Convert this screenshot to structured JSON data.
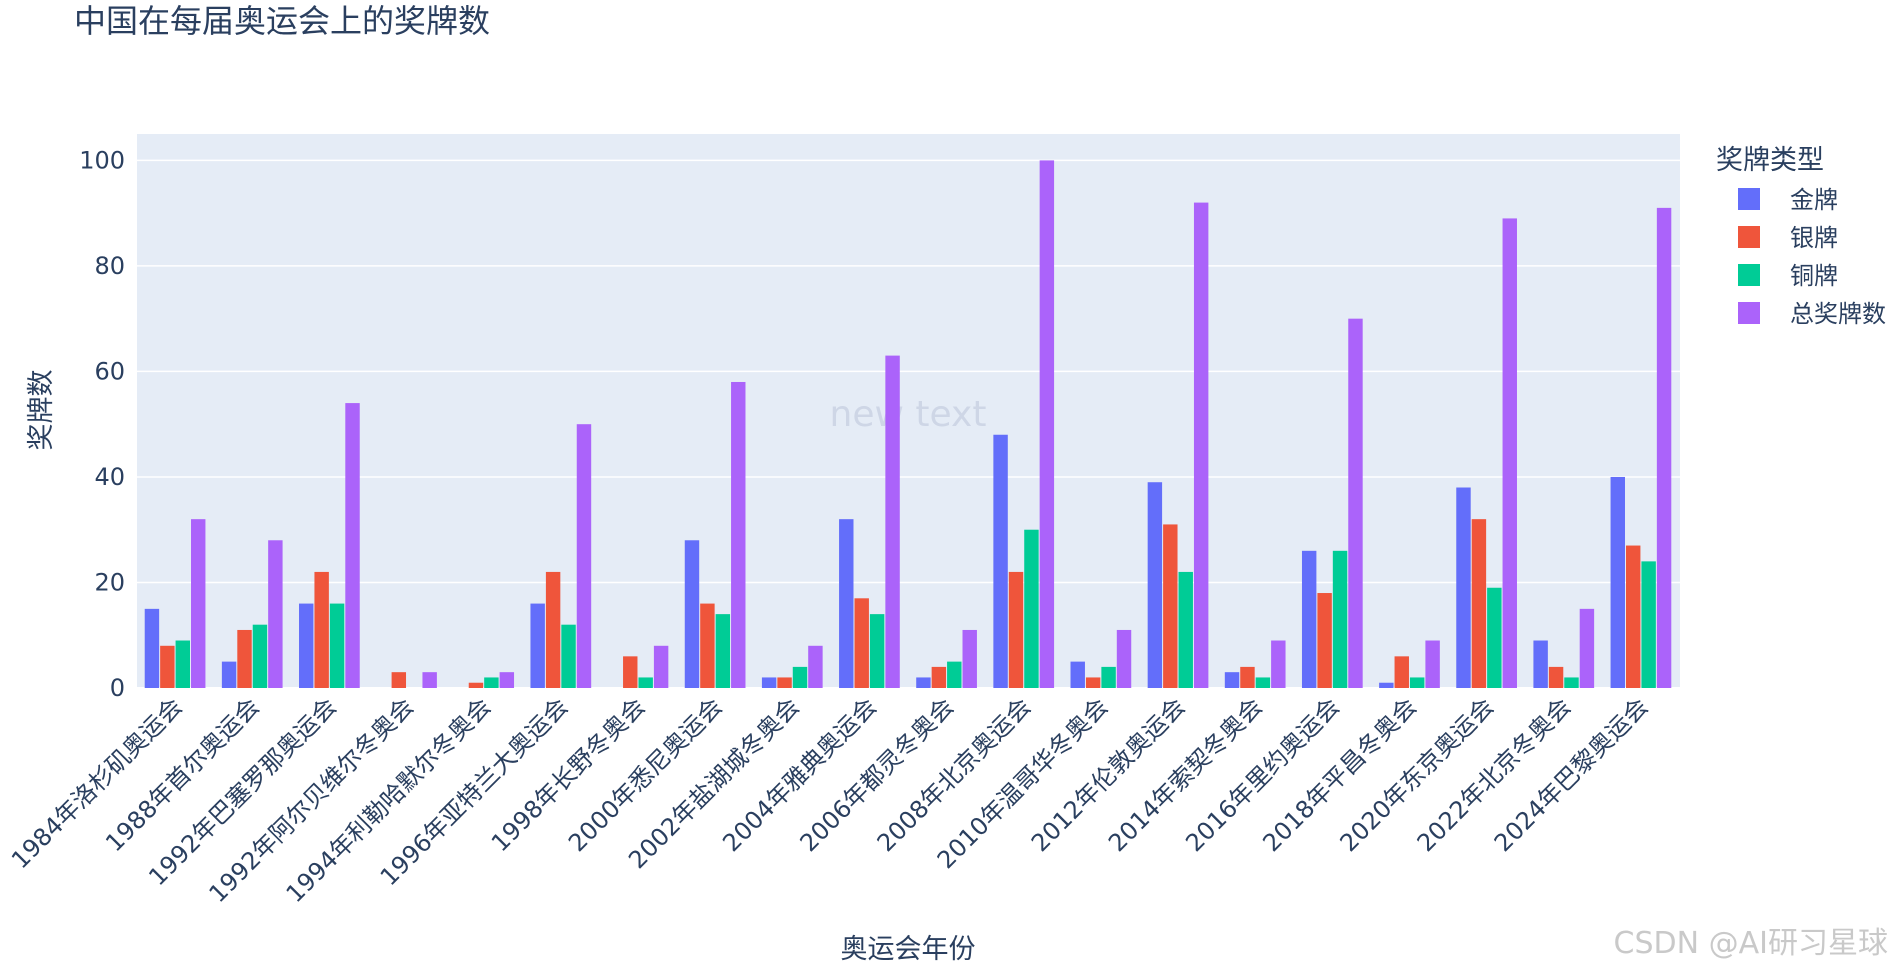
{
  "chart_data": {
    "type": "bar",
    "title": "中国在每届奥运会上的奖牌数",
    "xlabel": "奥运会年份",
    "ylabel": "奖牌数",
    "ylim": [
      0,
      105
    ],
    "yticks": [
      0,
      20,
      40,
      60,
      80,
      100
    ],
    "grid": true,
    "legend_title": "奖牌类型",
    "legend_position": "right",
    "annotation": "new text",
    "categories": [
      "1984年洛杉矶奥运会",
      "1988年首尔奥运会",
      "1992年巴塞罗那奥运会",
      "1992年阿尔贝维尔冬奥会",
      "1994年利勒哈默尔冬奥会",
      "1996年亚特兰大奥运会",
      "1998年长野冬奥会",
      "2000年悉尼奥运会",
      "2002年盐湖城冬奥会",
      "2004年雅典奥运会",
      "2006年都灵冬奥会",
      "2008年北京奥运会",
      "2010年温哥华冬奥会",
      "2012年伦敦奥运会",
      "2014年索契冬奥会",
      "2016年里约奥运会",
      "2018年平昌冬奥会",
      "2020年东京奥运会",
      "2022年北京冬奥会",
      "2024年巴黎奥运会"
    ],
    "series": [
      {
        "name": "金牌",
        "color": "#636efa",
        "values": [
          15,
          5,
          16,
          0,
          0,
          16,
          0,
          28,
          2,
          32,
          2,
          48,
          5,
          39,
          3,
          26,
          1,
          38,
          9,
          40
        ]
      },
      {
        "name": "银牌",
        "color": "#ef553b",
        "values": [
          8,
          11,
          22,
          3,
          1,
          22,
          6,
          16,
          2,
          17,
          4,
          22,
          2,
          31,
          4,
          18,
          6,
          32,
          4,
          27
        ]
      },
      {
        "name": "铜牌",
        "color": "#00cc96",
        "values": [
          9,
          12,
          16,
          0,
          2,
          12,
          2,
          14,
          4,
          14,
          5,
          30,
          4,
          22,
          2,
          26,
          2,
          19,
          2,
          24
        ]
      },
      {
        "name": "总奖牌数",
        "color": "#ab63fa",
        "values": [
          32,
          28,
          54,
          3,
          3,
          50,
          8,
          58,
          8,
          63,
          11,
          100,
          11,
          92,
          9,
          70,
          9,
          89,
          15,
          91
        ]
      }
    ]
  },
  "watermark": "CSDN @AI研习星球"
}
